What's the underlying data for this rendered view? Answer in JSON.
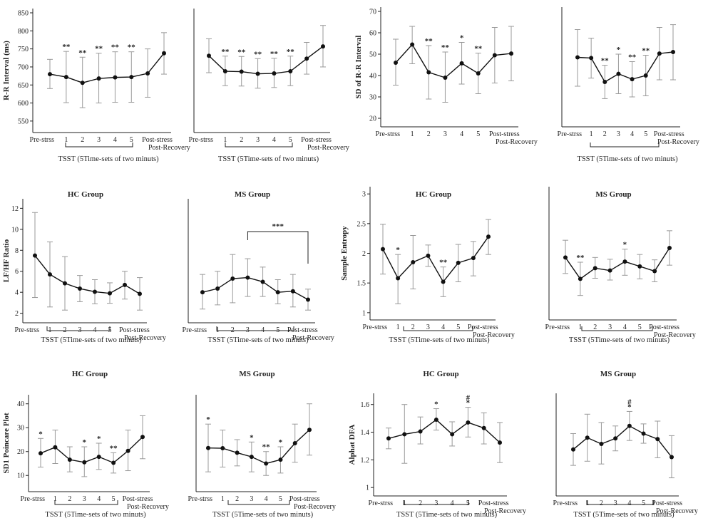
{
  "chart_data": [
    {
      "type": "line",
      "title": "",
      "ylabel": "R-R Interval (ms)",
      "ylim": [
        530,
        850
      ],
      "yticks": [
        550,
        600,
        650,
        700,
        750,
        800,
        850
      ],
      "yaxis": true,
      "categories": [
        "Pre-strss",
        "1",
        "2",
        "3",
        "4",
        "5",
        "Post-stress",
        "Post-Recovery"
      ],
      "values": [
        680,
        672,
        656,
        668,
        671,
        672,
        682,
        738
      ],
      "err_low": [
        640,
        601,
        587,
        600,
        602,
        602,
        616,
        680
      ],
      "err_high": [
        721,
        743,
        727,
        738,
        742,
        742,
        750,
        795
      ],
      "stars": [
        "",
        "**",
        "**",
        "**",
        "**",
        "**",
        "",
        ""
      ],
      "xlabel": "TSST (5Time-sets of two minuts)"
    },
    {
      "type": "line",
      "title": "",
      "ylabel": "",
      "ylim": [
        530,
        850
      ],
      "yticks": [],
      "yaxis": false,
      "categories": [
        "Pre-strss",
        "1",
        "2",
        "3",
        "4",
        "5",
        "Post-stress",
        "Post-Recovery"
      ],
      "values": [
        731,
        688,
        687,
        681,
        682,
        688,
        723,
        757
      ],
      "err_low": [
        684,
        648,
        647,
        641,
        643,
        648,
        680,
        700
      ],
      "err_high": [
        778,
        730,
        729,
        723,
        724,
        730,
        768,
        815
      ],
      "stars": [
        "",
        "**",
        "**",
        "**",
        "**",
        "**",
        "",
        ""
      ],
      "xlabel": "TSST (5Time-sets of two minuts)"
    },
    {
      "type": "line",
      "title": "",
      "ylabel": "SD of R-R Interval",
      "ylim": [
        18,
        70
      ],
      "yticks": [
        20,
        30,
        40,
        50,
        60,
        70
      ],
      "yaxis": true,
      "categories": [
        "Pre-strss",
        "1",
        "2",
        "3",
        "4",
        "5",
        "Post-stress",
        "Post-Recovery"
      ],
      "values": [
        46,
        54.5,
        41.5,
        39,
        45.7,
        41,
        49.5,
        50.3
      ],
      "err_low": [
        35.5,
        45.5,
        29,
        27.5,
        36,
        31.5,
        36.5,
        37.5
      ],
      "err_high": [
        57,
        63,
        54,
        51,
        55.5,
        50.5,
        62.5,
        63
      ],
      "stars": [
        "",
        "",
        "**",
        "**",
        "*",
        "**",
        "",
        ""
      ],
      "xlabel": ""
    },
    {
      "type": "line",
      "title": "",
      "ylabel": "",
      "ylim": [
        18,
        70
      ],
      "yticks": [],
      "yaxis": false,
      "categories": [
        "Pre-strss",
        "1",
        "2",
        "3",
        "4",
        "5",
        "Post-stress",
        "Post-Recovery"
      ],
      "values": [
        48.5,
        48.2,
        37,
        40.8,
        38.3,
        40,
        50.3,
        51
      ],
      "err_low": [
        35,
        38.8,
        29.2,
        31.5,
        30,
        30.5,
        38,
        38
      ],
      "err_high": [
        61.5,
        57.5,
        44.8,
        50,
        46.5,
        49.5,
        62.5,
        63.8
      ],
      "stars": [
        "",
        "",
        "**",
        "*",
        "**",
        "**",
        "",
        ""
      ],
      "xlabel": "TSST (5Time-sets of two minuts)"
    },
    {
      "type": "line",
      "title": "HC Group",
      "ylabel": "LF/HF Ratio",
      "ylim": [
        1.5,
        12.5
      ],
      "yticks": [
        2,
        4,
        6,
        8,
        10,
        12
      ],
      "yaxis": true,
      "categories": [
        "Pre-strss",
        "1",
        "2",
        "3",
        "4",
        "5",
        "Post-stress",
        "Post-Recovery"
      ],
      "values": [
        7.5,
        5.7,
        4.85,
        4.35,
        4.05,
        3.9,
        4.7,
        3.85
      ],
      "err_low": [
        3.5,
        2.6,
        2.3,
        3.1,
        2.9,
        2.95,
        3.35,
        2.3
      ],
      "err_high": [
        11.6,
        8.8,
        7.4,
        5.6,
        5.2,
        4.9,
        6.0,
        5.4
      ],
      "stars": [
        "",
        "",
        "",
        "",
        "",
        "",
        "",
        ""
      ],
      "xlabel": "TSST (5Time-sets of two minuts)"
    },
    {
      "type": "line",
      "title": "MS Group",
      "ylabel": "",
      "ylim": [
        1.5,
        12.5
      ],
      "yticks": [],
      "yaxis": false,
      "categories": [
        "Pre-strss",
        "1",
        "2",
        "3",
        "4",
        "5",
        "Post-stress",
        "Post-Recovery"
      ],
      "values": [
        4.0,
        4.35,
        5.3,
        5.4,
        5.0,
        4.0,
        4.1,
        3.3
      ],
      "err_low": [
        2.4,
        2.8,
        3.0,
        3.6,
        3.6,
        2.9,
        2.6,
        2.3
      ],
      "err_high": [
        5.7,
        6.0,
        7.6,
        7.2,
        6.4,
        5.2,
        5.7,
        4.3
      ],
      "stars": [
        "",
        "",
        "",
        "",
        "",
        "",
        "",
        ""
      ],
      "bracket": {
        "from": 3,
        "to": 7,
        "label": "***"
      },
      "xlabel": "TSST (5Time-sets of two minuts)"
    },
    {
      "type": "line",
      "title": "HC Group",
      "ylabel": "Sample Entropy",
      "ylim": [
        0.95,
        3.05
      ],
      "yticks": [
        1,
        1.5,
        2.0,
        2.5,
        3.0
      ],
      "yaxis": true,
      "categories": [
        "Pre-strss",
        "1",
        "2",
        "3",
        "4",
        "5",
        "Post-stress",
        "Post-Recovery"
      ],
      "values": [
        2.07,
        1.58,
        1.85,
        1.96,
        1.52,
        1.84,
        1.92,
        2.28
      ],
      "err_low": [
        1.65,
        1.15,
        1.4,
        1.78,
        1.27,
        1.52,
        1.62,
        1.98
      ],
      "err_high": [
        2.49,
        1.98,
        2.3,
        2.14,
        1.77,
        2.15,
        2.2,
        2.57
      ],
      "stars": [
        "",
        "*",
        "",
        "",
        "**",
        "",
        "",
        ""
      ],
      "xlabel": "TSST (5Time-sets of two minuts)"
    },
    {
      "type": "line",
      "title": "MS Group",
      "ylabel": "",
      "ylim": [
        0.95,
        3.05
      ],
      "yticks": [],
      "yaxis": false,
      "categories": [
        "Pre-strss",
        "1",
        "2",
        "3",
        "4",
        "5",
        "Post-stress",
        "Post-Recovery"
      ],
      "values": [
        1.93,
        1.57,
        1.75,
        1.71,
        1.86,
        1.78,
        1.7,
        2.09
      ],
      "err_low": [
        1.66,
        1.29,
        1.58,
        1.55,
        1.63,
        1.57,
        1.52,
        1.8
      ],
      "err_high": [
        2.22,
        1.85,
        1.93,
        1.9,
        2.07,
        1.98,
        1.89,
        2.38
      ],
      "stars": [
        "",
        "**",
        "",
        "",
        "*",
        "",
        "",
        ""
      ],
      "xlabel": "TSST (5Time-sets of two minuts)"
    },
    {
      "type": "line",
      "title": "HC Group",
      "ylabel": "SD1 Poincare Plot",
      "ylim": [
        5,
        42
      ],
      "yticks": [
        10,
        20,
        30,
        40
      ],
      "yaxis": true,
      "categories": [
        "Pre-strss",
        "1",
        "2",
        "3",
        "4",
        "5",
        "Post-stress",
        "Post-Recovery"
      ],
      "values": [
        19.3,
        21.8,
        16.6,
        15.5,
        17.8,
        15.3,
        20.3,
        26.1
      ],
      "err_low": [
        13.5,
        15,
        11.5,
        9.5,
        12.5,
        11,
        12,
        17
      ],
      "err_high": [
        25.5,
        29,
        22,
        22,
        23.5,
        19.5,
        29,
        35
      ],
      "stars": [
        "*",
        "",
        "",
        "*",
        "*",
        "**",
        "",
        ""
      ],
      "xlabel": "TSST (5Time-sets of two minuts)"
    },
    {
      "type": "line",
      "title": "MS Group",
      "ylabel": "",
      "ylim": [
        5,
        42
      ],
      "yticks": [],
      "yaxis": false,
      "categories": [
        "Pre-strss",
        "1",
        "2",
        "3",
        "4",
        "5",
        "Post-stress",
        "Post-Recovery"
      ],
      "values": [
        21.5,
        21.4,
        19.5,
        17.8,
        15,
        16.6,
        23.5,
        29.1
      ],
      "err_low": [
        11.5,
        13.5,
        14,
        11.5,
        10,
        11,
        15.5,
        18.5
      ],
      "err_high": [
        31.5,
        29,
        25,
        24,
        20,
        22,
        31.5,
        40
      ],
      "stars": [
        "*",
        "",
        "",
        "*",
        "**",
        "*",
        "",
        ""
      ],
      "xlabel": "TSST (5Time-sets of two minuts)"
    },
    {
      "type": "line",
      "title": "HC Group",
      "ylabel": "Alphat DFA",
      "ylim": [
        0.97,
        1.65
      ],
      "yticks": [
        1.0,
        1.2,
        1.4,
        1.6
      ],
      "yaxis": true,
      "categories": [
        "Pre-strss",
        "1",
        "2",
        "3",
        "4",
        "5",
        "Post-stress",
        "Post-Recovery"
      ],
      "values": [
        1.355,
        1.385,
        1.405,
        1.49,
        1.385,
        1.47,
        1.43,
        1.325
      ],
      "err_low": [
        1.28,
        1.175,
        1.315,
        1.415,
        1.3,
        1.365,
        1.315,
        1.18
      ],
      "err_high": [
        1.43,
        1.6,
        1.51,
        1.57,
        1.475,
        1.58,
        1.54,
        1.47
      ],
      "stars": [
        "",
        "",
        "",
        "*",
        "",
        "#\n*",
        "",
        ""
      ],
      "xlabel": "TSST (5Time-sets of two minuts)"
    },
    {
      "type": "line",
      "title": "MS Group",
      "ylabel": "",
      "ylim": [
        0.97,
        1.65
      ],
      "yticks": [],
      "yaxis": false,
      "categories": [
        "Pre-strss",
        "1",
        "2",
        "3",
        "4",
        "5",
        "Post-stress",
        "Post-Recovery"
      ],
      "values": [
        1.275,
        1.36,
        1.315,
        1.355,
        1.445,
        1.39,
        1.35,
        1.22
      ],
      "err_low": [
        1.16,
        1.19,
        1.17,
        1.265,
        1.34,
        1.32,
        1.215,
        1.07
      ],
      "err_high": [
        1.39,
        1.53,
        1.47,
        1.445,
        1.55,
        1.46,
        1.48,
        1.375
      ],
      "stars": [
        "",
        "",
        "",
        "",
        "#\n*",
        "",
        "",
        ""
      ],
      "xlabel": "TSST (5Time-sets of two minuts)"
    }
  ]
}
